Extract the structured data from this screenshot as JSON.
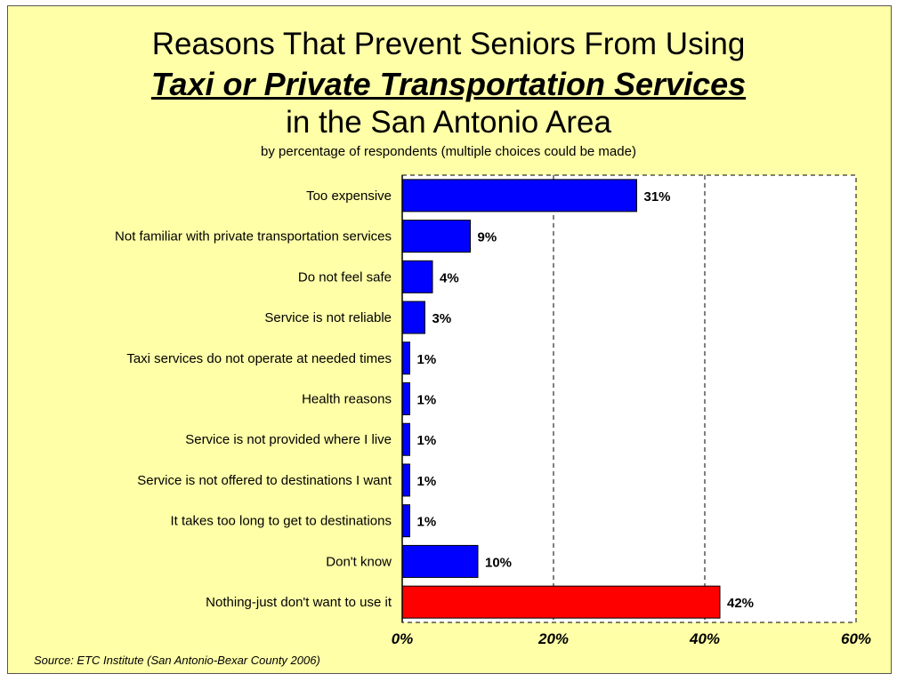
{
  "chart_data": {
    "type": "bar",
    "orientation": "horizontal",
    "title_line1": "Reasons That Prevent Seniors From Using",
    "title_line2": "Taxi or Private Transportation Services",
    "title_line3": "in the San Antonio Area",
    "subtitle": "by percentage of respondents (multiple choices could be made)",
    "source": "Source:  ETC Institute (San Antonio-Bexar County 2006)",
    "categories": [
      "Too expensive",
      "Not familiar with private transportation services",
      "Do not feel safe",
      "Service is not reliable",
      "Taxi services do not operate at needed times",
      "Health reasons",
      "Service is not provided where I live",
      "Service is not offered to destinations I want",
      "It takes too long to get to destinations",
      "Don't know",
      "Nothing-just don't want to use it"
    ],
    "values": [
      31,
      9,
      4,
      3,
      1,
      1,
      1,
      1,
      1,
      10,
      42
    ],
    "value_labels": [
      "31%",
      "9%",
      "4%",
      "3%",
      "1%",
      "1%",
      "1%",
      "1%",
      "1%",
      "10%",
      "42%"
    ],
    "bar_colors": [
      "#0000ff",
      "#0000ff",
      "#0000ff",
      "#0000ff",
      "#0000ff",
      "#0000ff",
      "#0000ff",
      "#0000ff",
      "#0000ff",
      "#0000ff",
      "#ff0000"
    ],
    "xlim": [
      0,
      60
    ],
    "xticks": [
      0,
      20,
      40,
      60
    ],
    "xtick_labels": [
      "0%",
      "20%",
      "40%",
      "60%"
    ],
    "grid": "vertical dashed",
    "plot_background": "#ffffff",
    "page_background": "#ffffa8"
  }
}
